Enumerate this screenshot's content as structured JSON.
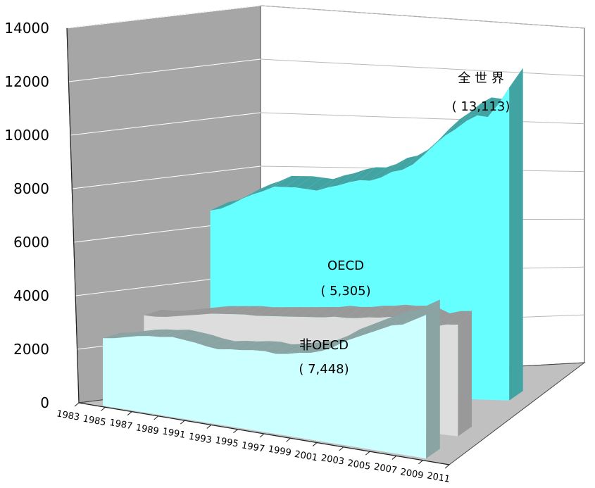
{
  "chart_data": {
    "type": "area",
    "view": "3d",
    "categories": [
      "1983",
      "1984",
      "1985",
      "1986",
      "1987",
      "1988",
      "1989",
      "1990",
      "1991",
      "1992",
      "1993",
      "1994",
      "1995",
      "1996",
      "1997",
      "1998",
      "1999",
      "2000",
      "2001",
      "2002",
      "2003",
      "2004",
      "2005",
      "2006",
      "2007",
      "2008",
      "2009",
      "2010",
      "2011"
    ],
    "x_tick_labels": [
      "1983",
      "1985",
      "1987",
      "1989",
      "1991",
      "1993",
      "1995",
      "1997",
      "1999",
      "2001",
      "2003",
      "2005",
      "2007",
      "2009",
      "2011"
    ],
    "y_ticks": [
      "0",
      "2000",
      "4000",
      "6000",
      "8000",
      "10000",
      "12000",
      "14000"
    ],
    "ylim": [
      0,
      14000
    ],
    "grid": true,
    "series": [
      {
        "name": "非OECD",
        "color": "#ccffff",
        "side_color": "#8aa3a3",
        "values": [
          3500,
          3600,
          3750,
          3900,
          4000,
          4050,
          4150,
          4100,
          4050,
          3950,
          3900,
          4000,
          4050,
          4150,
          4200,
          4150,
          4250,
          4400,
          4500,
          4700,
          5000,
          5400,
          5700,
          6000,
          6300,
          6600,
          6750,
          7100,
          7448
        ]
      },
      {
        "name": "OECD",
        "color": "#dddddd",
        "side_color": "#999999",
        "values": [
          4000,
          4000,
          4050,
          4150,
          4250,
          4350,
          4450,
          4500,
          4550,
          4600,
          4600,
          4650,
          4700,
          4750,
          4800,
          4850,
          4900,
          5000,
          5000,
          5050,
          5150,
          5200,
          5300,
          5300,
          5350,
          5300,
          5100,
          5250,
          5305
        ]
      },
      {
        "name": "全 世 界",
        "color": "#66ffff",
        "side_color": "#42a3a3",
        "values": [
          7500,
          7600,
          7800,
          8050,
          8250,
          8400,
          8600,
          8600,
          8600,
          8550,
          8500,
          8650,
          8750,
          8900,
          9000,
          9000,
          9150,
          9400,
          9500,
          9750,
          10150,
          10600,
          11000,
          11300,
          11650,
          11900,
          11850,
          12400,
          13113
        ]
      }
    ],
    "annotations": [
      {
        "series": "全 世 界",
        "value": "( 13,113)"
      },
      {
        "series": "OECD",
        "value": "( 5,305)"
      },
      {
        "series": "非OECD",
        "value": "( 7,448)"
      }
    ]
  }
}
